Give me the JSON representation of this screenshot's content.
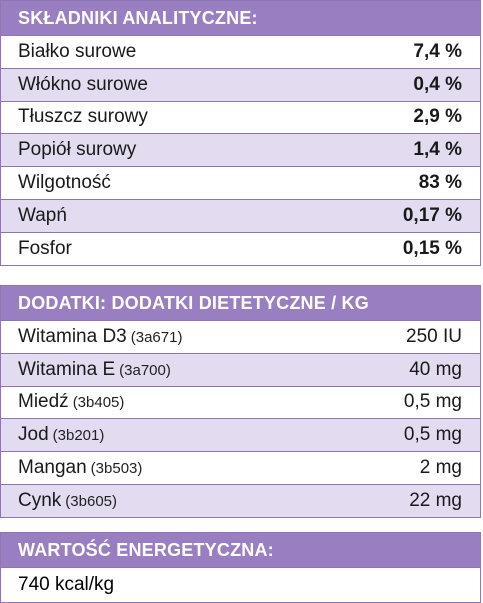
{
  "analytical": {
    "title": "SKŁADNIKI ANALITYCZNE:",
    "rows": [
      {
        "name": "Białko surowe",
        "value": "7,4 %"
      },
      {
        "name": "Włókno surowe",
        "value": "0,4 %"
      },
      {
        "name": "Tłuszcz surowy",
        "value": "2,9 %"
      },
      {
        "name": "Popiół surowy",
        "value": "1,4 %"
      },
      {
        "name": "Wilgotność",
        "value": "83 %"
      },
      {
        "name": "Wapń",
        "value": "0,17 %"
      },
      {
        "name": "Fosfor",
        "value": "0,15 %"
      }
    ]
  },
  "additives": {
    "title": "DODATKI: DODATKI DIETETYCZNE / KG",
    "rows": [
      {
        "name": "Witamina D3",
        "code": "(3a671)",
        "value": "250 IU"
      },
      {
        "name": "Witamina E",
        "code": "(3a700)",
        "value": "40 mg"
      },
      {
        "name": "Miedź",
        "code": "(3b405)",
        "value": "0,5 mg"
      },
      {
        "name": "Jod",
        "code": "(3b201)",
        "value": "0,5 mg"
      },
      {
        "name": "Mangan",
        "code": "(3b503)",
        "value": "2 mg"
      },
      {
        "name": "Cynk",
        "code": "(3b605)",
        "value": "22 mg"
      }
    ]
  },
  "energy": {
    "title": "WARTOŚĆ ENERGETYCZNA:",
    "value": "740 kcal/kg"
  },
  "colors": {
    "header": "#9a7ec2",
    "alt_row": "#e3dbef",
    "border": "#8f76b3"
  }
}
